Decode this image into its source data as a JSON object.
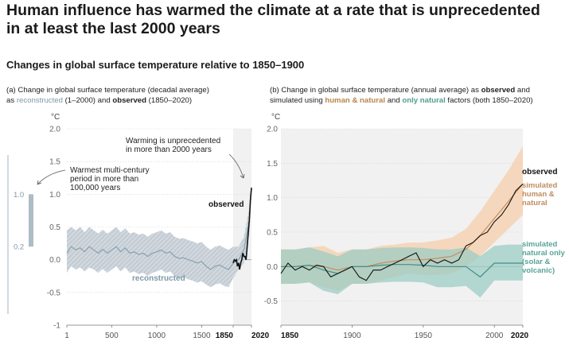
{
  "title_line1": "Human influence has warmed the climate at a rate that is unprecedented",
  "title_line2": "in at least the last 2000 years",
  "subtitle": "Changes in global surface temperature relative to 1850–1900",
  "panel_a": {
    "line1": "(a) Change in global surface temperature (decadal average)",
    "line2_pre": "as ",
    "line2_recon": "reconstructed",
    "line2_mid": " (1–2000) and ",
    "line2_obs": "observed",
    "line2_post": " (1850–2020)"
  },
  "panel_b": {
    "line1_pre": "(b) Change in global surface temperature (annual average) as ",
    "line1_obs": "observed",
    "line1_post": " and",
    "line2_pre": "simulated using ",
    "line2_human": "human & natural",
    "line2_mid": " and ",
    "line2_natural": "only natural",
    "line2_post": " factors (both 1850–2020)"
  },
  "colors": {
    "reconstructed": "#8aa0ad",
    "reconstructed_band": "#c3ccd3",
    "observed": "#111111",
    "human_natural": "#c98e58",
    "human_band": "#f6d2b4",
    "natural": "#3f8d86",
    "natural_band": "#9cccc4",
    "shade": "#f1f1f1"
  },
  "chart_data": [
    {
      "type": "line",
      "id": "a",
      "ylabel": "°C",
      "ylim": [
        -1,
        2
      ],
      "xlim": [
        1,
        2020
      ],
      "yticks": [
        "-1",
        "-0.5",
        "0.0",
        "0.5",
        "1.0",
        "1.5",
        "2.0"
      ],
      "ytick_values": [
        -1,
        -0.5,
        0,
        0.5,
        1,
        1.5,
        2
      ],
      "xticks": [
        "1",
        "500",
        "1000",
        "1500",
        "1850",
        "2020"
      ],
      "xtick_values": [
        1,
        500,
        1000,
        1500,
        1850,
        2020
      ],
      "shaded_region": [
        1850,
        2020
      ],
      "series": [
        {
          "name": "reconstructed",
          "x": [
            1,
            50,
            100,
            150,
            200,
            250,
            300,
            350,
            400,
            450,
            500,
            550,
            600,
            650,
            700,
            750,
            800,
            850,
            900,
            950,
            1000,
            1050,
            1100,
            1150,
            1200,
            1250,
            1300,
            1350,
            1400,
            1450,
            1500,
            1550,
            1600,
            1650,
            1700,
            1750,
            1800,
            1850,
            1900,
            1950,
            2000
          ],
          "y": [
            0.1,
            0.2,
            0.15,
            0.18,
            0.12,
            0.2,
            0.15,
            0.1,
            0.16,
            0.1,
            0.15,
            0.2,
            0.12,
            0.18,
            0.1,
            0.12,
            0.08,
            0.1,
            0.05,
            0.1,
            0.12,
            0.15,
            0.1,
            0.12,
            0.05,
            0.02,
            0.03,
            0.0,
            -0.02,
            -0.05,
            -0.03,
            -0.1,
            -0.15,
            -0.1,
            -0.08,
            -0.12,
            -0.15,
            -0.05,
            0.0,
            0.15,
            0.6
          ],
          "lower": [
            -0.2,
            -0.1,
            -0.15,
            -0.12,
            -0.18,
            -0.12,
            -0.15,
            -0.2,
            -0.14,
            -0.2,
            -0.15,
            -0.1,
            -0.18,
            -0.12,
            -0.2,
            -0.18,
            -0.22,
            -0.2,
            -0.25,
            -0.2,
            -0.18,
            -0.15,
            -0.2,
            -0.18,
            -0.25,
            -0.28,
            -0.27,
            -0.3,
            -0.32,
            -0.35,
            -0.33,
            -0.38,
            -0.42,
            -0.38,
            -0.36,
            -0.4,
            -0.42,
            -0.28,
            -0.15,
            -0.05,
            0.4
          ],
          "upper": [
            0.45,
            0.5,
            0.45,
            0.5,
            0.42,
            0.5,
            0.45,
            0.4,
            0.46,
            0.4,
            0.45,
            0.5,
            0.42,
            0.48,
            0.4,
            0.42,
            0.38,
            0.4,
            0.35,
            0.4,
            0.42,
            0.45,
            0.4,
            0.42,
            0.35,
            0.32,
            0.33,
            0.3,
            0.28,
            0.25,
            0.27,
            0.2,
            0.15,
            0.2,
            0.22,
            0.18,
            0.15,
            0.2,
            0.2,
            0.35,
            0.8
          ]
        },
        {
          "name": "observed",
          "x": [
            1850,
            1860,
            1870,
            1880,
            1890,
            1900,
            1910,
            1920,
            1930,
            1940,
            1950,
            1960,
            1970,
            1980,
            1990,
            2000,
            2010,
            2020
          ],
          "y": [
            -0.05,
            0.0,
            -0.02,
            0.0,
            -0.1,
            -0.05,
            -0.15,
            -0.05,
            0.0,
            0.1,
            0.05,
            0.05,
            0.0,
            0.2,
            0.4,
            0.6,
            0.9,
            1.1
          ]
        }
      ],
      "annotations": {
        "warmest_line1": "Warmest multi-century",
        "warmest_line2": "period in more than",
        "warmest_line3": "100,000 years",
        "unprecedented_line1": "Warming is unprecedented",
        "unprecedented_line2": "in more than 2000 years",
        "observed_label": "observed",
        "reconstructed_label": "reconstructed"
      },
      "side_bar": {
        "low_label": "0.2",
        "high_label": "1.0",
        "low_value": 0.2,
        "high_value": 1.0
      }
    },
    {
      "type": "line",
      "id": "b",
      "ylabel": "°C",
      "ylim": [
        -0.85,
        2
      ],
      "xlim": [
        1850,
        2020
      ],
      "yticks": [
        "-0.5",
        "0.0",
        "0.5",
        "1.0",
        "1.5",
        "2.0"
      ],
      "ytick_values": [
        -0.5,
        0,
        0.5,
        1,
        1.5,
        2
      ],
      "xticks": [
        "1850",
        "1900",
        "1950",
        "2000",
        "2020"
      ],
      "xtick_values": [
        1850,
        1900,
        1950,
        2000,
        2020
      ],
      "series": [
        {
          "name": "simulated human & natural",
          "x": [
            1850,
            1860,
            1870,
            1880,
            1890,
            1900,
            1910,
            1920,
            1930,
            1940,
            1950,
            1960,
            1970,
            1980,
            1990,
            2000,
            2010,
            2020
          ],
          "y": [
            0.0,
            0.0,
            0.02,
            0.0,
            -0.05,
            0.0,
            0.0,
            0.05,
            0.08,
            0.1,
            0.1,
            0.12,
            0.15,
            0.25,
            0.45,
            0.7,
            0.95,
            1.2
          ],
          "lower": [
            -0.25,
            -0.25,
            -0.23,
            -0.3,
            -0.35,
            -0.25,
            -0.25,
            -0.2,
            -0.15,
            -0.1,
            -0.12,
            -0.12,
            -0.1,
            0.0,
            0.15,
            0.35,
            0.55,
            0.75
          ],
          "upper": [
            0.25,
            0.25,
            0.28,
            0.3,
            0.2,
            0.25,
            0.25,
            0.3,
            0.32,
            0.35,
            0.35,
            0.38,
            0.42,
            0.55,
            0.8,
            1.1,
            1.4,
            1.75
          ]
        },
        {
          "name": "simulated natural only (solar & volcanic)",
          "x": [
            1850,
            1860,
            1870,
            1880,
            1890,
            1900,
            1910,
            1920,
            1930,
            1940,
            1950,
            1960,
            1970,
            1980,
            1990,
            2000,
            2010,
            2020
          ],
          "y": [
            0.0,
            0.0,
            0.02,
            -0.05,
            -0.1,
            0.0,
            0.0,
            0.02,
            0.03,
            0.03,
            0.02,
            0.0,
            0.0,
            0.0,
            -0.15,
            0.05,
            0.05,
            0.05
          ],
          "lower": [
            -0.25,
            -0.25,
            -0.23,
            -0.35,
            -0.4,
            -0.25,
            -0.25,
            -0.23,
            -0.22,
            -0.22,
            -0.23,
            -0.3,
            -0.3,
            -0.28,
            -0.45,
            -0.2,
            -0.2,
            -0.2
          ],
          "upper": [
            0.25,
            0.25,
            0.28,
            0.22,
            0.15,
            0.25,
            0.25,
            0.27,
            0.28,
            0.28,
            0.27,
            0.25,
            0.25,
            0.28,
            0.15,
            0.3,
            0.32,
            0.32
          ]
        },
        {
          "name": "observed",
          "x": [
            1850,
            1855,
            1860,
            1865,
            1870,
            1875,
            1880,
            1885,
            1890,
            1895,
            1900,
            1905,
            1910,
            1915,
            1920,
            1925,
            1930,
            1935,
            1940,
            1945,
            1950,
            1955,
            1960,
            1965,
            1970,
            1975,
            1980,
            1985,
            1990,
            1995,
            2000,
            2005,
            2010,
            2015,
            2020
          ],
          "y": [
            -0.1,
            0.05,
            -0.05,
            0.0,
            -0.05,
            0.02,
            0.0,
            -0.15,
            -0.1,
            -0.05,
            0.0,
            -0.15,
            -0.2,
            -0.05,
            -0.05,
            0.0,
            0.05,
            0.1,
            0.15,
            0.2,
            0.0,
            0.1,
            0.05,
            0.1,
            0.05,
            0.1,
            0.3,
            0.35,
            0.45,
            0.5,
            0.65,
            0.75,
            0.9,
            1.1,
            1.2
          ]
        }
      ],
      "annotations": {
        "observed_label": "observed",
        "human_line1": "simulated",
        "human_line2": "human &",
        "human_line3": "natural",
        "natural_line1": "simulated",
        "natural_line2": "natural only",
        "natural_line3": "(solar &",
        "natural_line4": "volcanic)"
      }
    }
  ]
}
